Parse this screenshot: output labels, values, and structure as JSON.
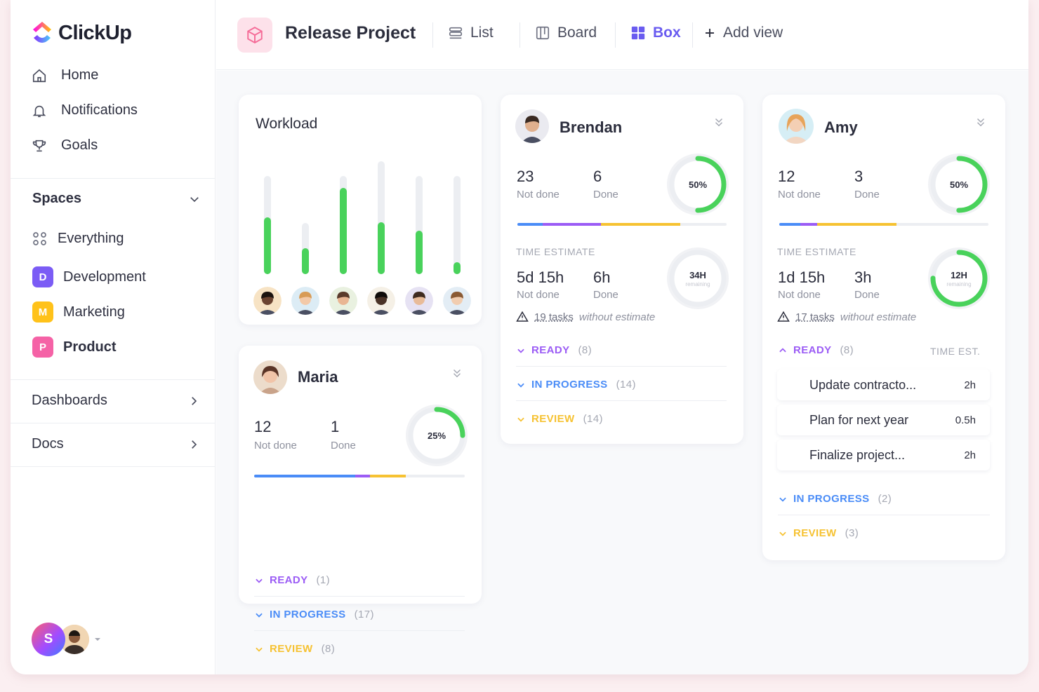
{
  "app": {
    "name": "ClickUp"
  },
  "sidebar": {
    "nav": [
      {
        "label": "Home",
        "icon": "home-icon"
      },
      {
        "label": "Notifications",
        "icon": "bell-icon"
      },
      {
        "label": "Goals",
        "icon": "trophy-icon"
      }
    ],
    "spaces_label": "Spaces",
    "spaces": [
      {
        "label": "Everything",
        "badge": ""
      },
      {
        "label": "Development",
        "badge": "D",
        "color": "#7b5cf5"
      },
      {
        "label": "Marketing",
        "badge": "M",
        "color": "#ffc21a"
      },
      {
        "label": "Product",
        "badge": "P",
        "color": "#f562a6"
      }
    ],
    "dashboards_label": "Dashboards",
    "docs_label": "Docs",
    "user_initial": "S"
  },
  "topbar": {
    "project_title": "Release Project",
    "views": [
      {
        "label": "List",
        "icon": "list-icon"
      },
      {
        "label": "Board",
        "icon": "board-icon"
      },
      {
        "label": "Box",
        "icon": "box-grid-icon",
        "active": true
      },
      {
        "label": "Add view",
        "icon": "plus-icon"
      }
    ]
  },
  "workload": {
    "title": "Workload",
    "bars": [
      {
        "fill": 0.58
      },
      {
        "fill": 0.5
      },
      {
        "fill": 0.88
      },
      {
        "fill": 0.46
      },
      {
        "fill": 0.44
      },
      {
        "fill": 0.12
      }
    ]
  },
  "maria": {
    "name": "Maria",
    "not_done": "12",
    "not_done_label": "Not done",
    "done": "1",
    "done_label": "Done",
    "ring_pct": 25,
    "ring_label": "25%",
    "progress": [
      0.48,
      0.07,
      0.17
    ],
    "groups": [
      {
        "label": "READY",
        "count": "(1)",
        "color": "#9b5cf5"
      },
      {
        "label": "IN PROGRESS",
        "count": "(17)",
        "color": "#4a8cf7"
      },
      {
        "label": "REVIEW",
        "count": "(8)",
        "color": "#f6c232"
      }
    ]
  },
  "brendan": {
    "name": "Brendan",
    "not_done": "23",
    "not_done_label": "Not done",
    "done": "6",
    "done_label": "Done",
    "ring_pct": 50,
    "ring_label": "50%",
    "progress": [
      0.12,
      0.28,
      0.38
    ],
    "time_caption": "TIME ESTIMATE",
    "time_not_done": "5d 15h",
    "time_done": "6h",
    "time_ring_label": "34H",
    "time_ring_sub": "remaining",
    "time_ring_pct": 0,
    "warn_link": "19 tasks",
    "warn_text": "without estimate",
    "groups": [
      {
        "label": "READY",
        "count": "(8)",
        "color": "#9b5cf5"
      },
      {
        "label": "IN PROGRESS",
        "count": "(14)",
        "color": "#4a8cf7"
      },
      {
        "label": "REVIEW",
        "count": "(14)",
        "color": "#f6c232"
      }
    ]
  },
  "amy": {
    "name": "Amy",
    "not_done": "12",
    "not_done_label": "Not done",
    "done": "3",
    "done_label": "Done",
    "ring_pct": 50,
    "ring_label": "50%",
    "progress": [
      0.1,
      0.08,
      0.38
    ],
    "time_caption": "TIME ESTIMATE",
    "time_not_done": "1d 15h",
    "time_done": "3h",
    "time_ring_label": "12H",
    "time_ring_sub": "remaining",
    "time_ring_pct": 75,
    "warn_link": "17 tasks",
    "warn_text": "without estimate",
    "ready_label": "READY",
    "ready_count": "(8)",
    "time_est_label": "TIME EST.",
    "tasks": [
      {
        "name": "Update contracto...",
        "est": "2h"
      },
      {
        "name": "Plan for next year",
        "est": "0.5h"
      },
      {
        "name": "Finalize project...",
        "est": "2h"
      }
    ],
    "groups": [
      {
        "label": "IN PROGRESS",
        "count": "(2)",
        "color": "#4a8cf7"
      },
      {
        "label": "REVIEW",
        "count": "(3)",
        "color": "#f6c232"
      }
    ]
  },
  "colors": {
    "green": "#49d25b",
    "purple": "#9b5cf5",
    "blue": "#4a8cf7",
    "yellow": "#f6c232",
    "accent": "#6a5cf0"
  }
}
